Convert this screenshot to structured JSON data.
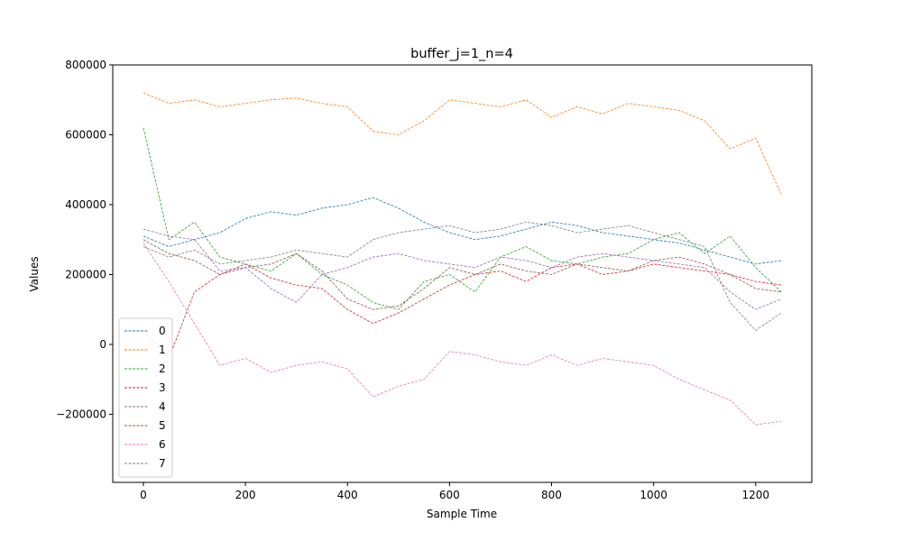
{
  "chart_data": {
    "type": "line",
    "title": "buffer_j=1_n=4",
    "xlabel": "Sample Time",
    "ylabel": "Values",
    "xlim": [
      -60,
      1310
    ],
    "ylim": [
      -395000,
      800000
    ],
    "xticks": [
      0,
      200,
      400,
      600,
      800,
      1000,
      1200
    ],
    "yticks": [
      -200000,
      0,
      200000,
      400000,
      600000,
      800000
    ],
    "xtick_labels": [
      "0",
      "200",
      "400",
      "600",
      "800",
      "1000",
      "1200"
    ],
    "ytick_labels": [
      "−200000",
      "0",
      "200000",
      "400000",
      "600000",
      "800000"
    ],
    "grid": false,
    "legend_position": "lower-left",
    "line_style": "dashed",
    "series": [
      {
        "name": "0",
        "color": "#1f77b4",
        "x": [
          0,
          50,
          100,
          150,
          200,
          250,
          300,
          350,
          400,
          450,
          500,
          550,
          600,
          650,
          700,
          750,
          800,
          850,
          900,
          950,
          1000,
          1050,
          1100,
          1150,
          1200,
          1250
        ],
        "values": [
          310000,
          280000,
          300000,
          320000,
          360000,
          380000,
          370000,
          390000,
          400000,
          420000,
          390000,
          350000,
          320000,
          300000,
          310000,
          330000,
          350000,
          340000,
          320000,
          310000,
          300000,
          290000,
          270000,
          250000,
          230000,
          240000
        ]
      },
      {
        "name": "1",
        "color": "#ff7f0e",
        "x": [
          0,
          50,
          100,
          150,
          200,
          250,
          300,
          350,
          400,
          450,
          500,
          550,
          600,
          650,
          700,
          750,
          800,
          850,
          900,
          950,
          1000,
          1050,
          1100,
          1150,
          1200,
          1250
        ],
        "values": [
          720000,
          690000,
          700000,
          680000,
          690000,
          700000,
          705000,
          690000,
          680000,
          610000,
          600000,
          640000,
          700000,
          690000,
          680000,
          700000,
          650000,
          680000,
          660000,
          690000,
          680000,
          670000,
          640000,
          560000,
          590000,
          430000
        ]
      },
      {
        "name": "2",
        "color": "#2ca02c",
        "x": [
          0,
          50,
          100,
          150,
          200,
          250,
          300,
          350,
          400,
          450,
          500,
          550,
          600,
          650,
          700,
          750,
          800,
          850,
          900,
          950,
          1000,
          1050,
          1100,
          1150,
          1200,
          1250
        ],
        "values": [
          620000,
          300000,
          350000,
          250000,
          230000,
          210000,
          260000,
          200000,
          170000,
          120000,
          100000,
          180000,
          200000,
          150000,
          250000,
          280000,
          240000,
          230000,
          250000,
          260000,
          300000,
          320000,
          260000,
          310000,
          220000,
          150000
        ]
      },
      {
        "name": "3",
        "color": "#d62728",
        "x": [
          0,
          50,
          100,
          150,
          200,
          250,
          300,
          350,
          400,
          450,
          500,
          550,
          600,
          650,
          700,
          750,
          800,
          850,
          900,
          950,
          1000,
          1050,
          1100,
          1150,
          1200,
          1250
        ],
        "values": [
          40000,
          -40000,
          150000,
          200000,
          230000,
          190000,
          170000,
          160000,
          100000,
          60000,
          90000,
          130000,
          170000,
          200000,
          210000,
          180000,
          220000,
          230000,
          200000,
          210000,
          230000,
          220000,
          210000,
          200000,
          180000,
          170000
        ]
      },
      {
        "name": "4",
        "color": "#9467bd",
        "x": [
          0,
          50,
          100,
          150,
          200,
          250,
          300,
          350,
          400,
          450,
          500,
          550,
          600,
          650,
          700,
          750,
          800,
          850,
          900,
          950,
          1000,
          1050,
          1100,
          1150,
          1200,
          1250
        ],
        "values": [
          330000,
          310000,
          300000,
          210000,
          220000,
          160000,
          120000,
          200000,
          220000,
          250000,
          260000,
          240000,
          230000,
          220000,
          250000,
          240000,
          220000,
          250000,
          260000,
          250000,
          240000,
          230000,
          220000,
          150000,
          100000,
          130000
        ]
      },
      {
        "name": "5",
        "color": "#8c564b",
        "x": [
          0,
          50,
          100,
          150,
          200,
          250,
          300,
          350,
          400,
          450,
          500,
          550,
          600,
          650,
          700,
          750,
          800,
          850,
          900,
          950,
          1000,
          1050,
          1100,
          1150,
          1200,
          1250
        ],
        "values": [
          300000,
          260000,
          240000,
          200000,
          220000,
          230000,
          260000,
          210000,
          130000,
          100000,
          110000,
          160000,
          220000,
          200000,
          230000,
          210000,
          200000,
          230000,
          220000,
          210000,
          240000,
          250000,
          230000,
          200000,
          160000,
          150000
        ]
      },
      {
        "name": "6",
        "color": "#e377c2",
        "x": [
          0,
          50,
          100,
          150,
          200,
          250,
          300,
          350,
          400,
          450,
          500,
          550,
          600,
          650,
          700,
          750,
          800,
          850,
          900,
          950,
          1000,
          1050,
          1100,
          1150,
          1200,
          1250
        ],
        "values": [
          290000,
          180000,
          60000,
          -60000,
          -40000,
          -80000,
          -60000,
          -50000,
          -70000,
          -150000,
          -120000,
          -100000,
          -20000,
          -30000,
          -50000,
          -60000,
          -30000,
          -60000,
          -40000,
          -50000,
          -60000,
          -100000,
          -130000,
          -160000,
          -230000,
          -220000
        ]
      },
      {
        "name": "7",
        "color": "#7f7f7f",
        "x": [
          0,
          50,
          100,
          150,
          200,
          250,
          300,
          350,
          400,
          450,
          500,
          550,
          600,
          650,
          700,
          750,
          800,
          850,
          900,
          950,
          1000,
          1050,
          1100,
          1150,
          1200,
          1250
        ],
        "values": [
          280000,
          250000,
          270000,
          230000,
          240000,
          250000,
          270000,
          260000,
          250000,
          300000,
          320000,
          330000,
          340000,
          320000,
          330000,
          350000,
          340000,
          320000,
          330000,
          340000,
          320000,
          300000,
          280000,
          120000,
          40000,
          90000
        ]
      }
    ]
  }
}
